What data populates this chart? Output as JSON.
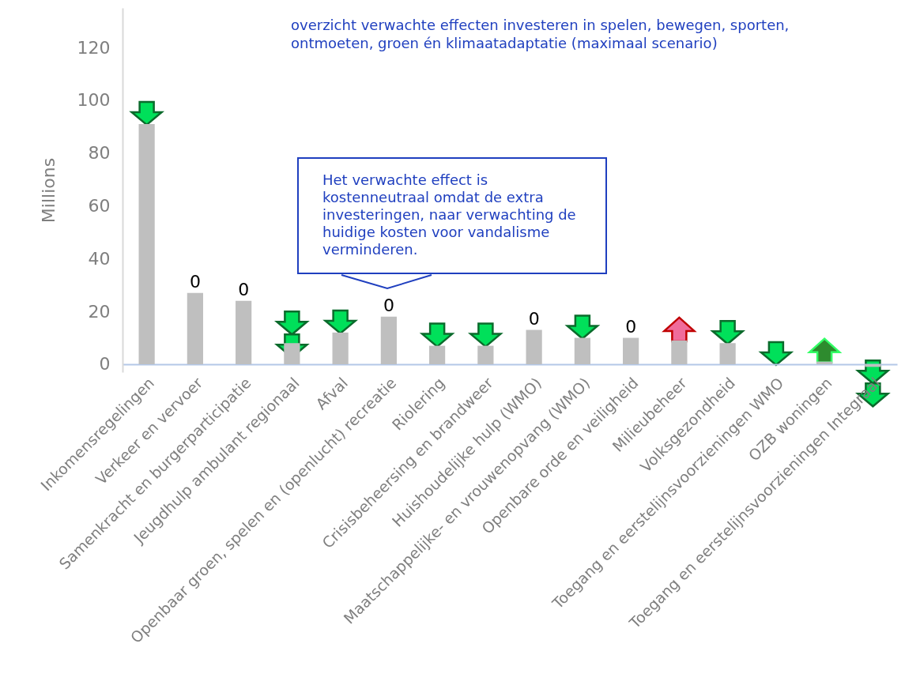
{
  "chart_data": {
    "type": "bar",
    "title": "overzicht verwachte effecten investeren in spelen, bewegen, sporten, ontmoeten, groen én klimaatadaptatie (maximaal scenario)",
    "ylabel": "Millions",
    "categories": [
      "Inkomensregelingen",
      "Verkeer en vervoer",
      "Samenkracht en burgerparticipatie",
      "Jeugdhulp ambulant regionaal",
      "Afval",
      "Openbaar groen, spelen en (openlucht) recreatie",
      "Riolering",
      "Crisisbeheersing en brandweer",
      "Huishoudelijke hulp (WMO)",
      "Maatschappelijke- en vrouwenopvang (WMO)",
      "Openbare orde en veiligheid",
      "Milieubeheer",
      "Volksgezondheid",
      "Toegang en eerstelijnsvoorzieningen WMO",
      "OZB woningen",
      "Toegang en eerstelijnsvoorzieningen Integraal"
    ],
    "values": [
      91,
      27,
      24,
      8,
      12,
      18,
      7,
      7,
      13,
      10,
      10,
      9,
      8,
      0,
      1,
      -1
    ],
    "color": "#bfbfbf",
    "ylim": [
      -3,
      135
    ],
    "yticks": [
      0,
      20,
      40,
      60,
      80,
      100,
      120
    ],
    "grid": false,
    "annotations": [
      "Het verwachte effect is kostenneutraal omdat de extra investeringen, naar verwachting de huidige kosten voor vandalisme verminderen.",
      {
        "text": "0",
        "x": "Verkeer en vervoer",
        "y": 27
      },
      {
        "text": "0",
        "x": "Samenkracht en burgerparticipatie",
        "y": 24
      },
      {
        "text": "0",
        "x": "Openbaar groen, spelen en (openlucht) recreatie",
        "y": 18
      },
      {
        "text": "0",
        "x": "Huishoudelijke hulp (WMO)",
        "y": 13
      },
      {
        "text": "0",
        "x": "Openbare orde en veiligheid",
        "y": 10
      }
    ]
  }
}
